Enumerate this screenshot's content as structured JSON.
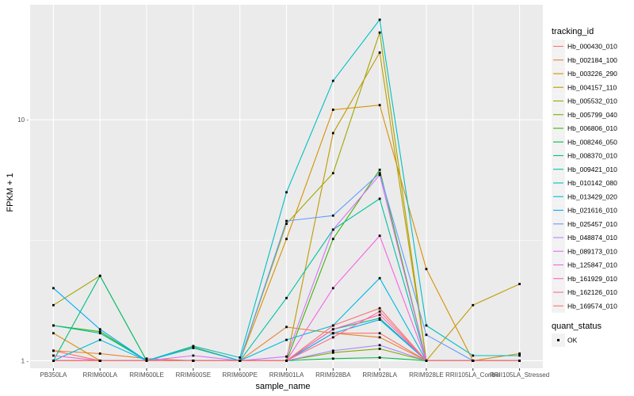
{
  "chart_data": {
    "type": "line",
    "xlabel": "sample_name",
    "ylabel": "FPKM + 1",
    "y_scale": "log10",
    "ylim": [
      0.93,
      30
    ],
    "y_ticks": [
      1,
      10
    ],
    "y_tick_labels": [
      "1 -",
      "10 -"
    ],
    "grid": true,
    "legend_position": "right",
    "legend_title": "tracking_id",
    "legend2_title": "quant_status",
    "legend2_entries": [
      "OK"
    ],
    "categories": [
      "PB350LA",
      "RRIM600LA",
      "RRIM600LE",
      "RRIM600SE",
      "RRIM600PE",
      "RRIM901LA",
      "RRIM928BA",
      "RRIM928LA",
      "RRIM928LE",
      "RRII105LA_Control",
      "RRII105LA_Stressed"
    ],
    "category_labels": [
      "PB350LA",
      "RRIM600LA",
      "RRIM600LE",
      "RRIM600SE",
      "RRIM600PE",
      "RRIM901LA",
      "RRIM928BA",
      "RRIM928LA",
      "RRIM928LE",
      "RRII105LA_Control",
      "RRII105LA_Stressed"
    ],
    "series": [
      {
        "name": "Hb_000430_010",
        "color": "#F8766D",
        "values": [
          1.1,
          1.0,
          1.0,
          1.0,
          1.0,
          1.0,
          1.3,
          1.3,
          1.0,
          1.0,
          1.0
        ]
      },
      {
        "name": "Hb_002184_100",
        "color": "#EA8331",
        "values": [
          1.1,
          1.07,
          1.02,
          1.0,
          1.0,
          1.38,
          1.3,
          1.25,
          1.0,
          1.0,
          1.0
        ]
      },
      {
        "name": "Hb_003226_290",
        "color": "#D89000",
        "values": [
          1.3,
          1.0,
          1.0,
          1.0,
          1.0,
          3.2,
          11.0,
          11.5,
          2.4,
          1.0,
          1.07
        ]
      },
      {
        "name": "Hb_004157_110",
        "color": "#C09B00",
        "values": [
          1.0,
          1.0,
          1.0,
          1.0,
          1.0,
          1.0,
          8.8,
          19.0,
          1.0,
          1.7,
          2.08
        ]
      },
      {
        "name": "Hb_005532_010",
        "color": "#A3A500",
        "values": [
          1.7,
          2.25,
          1.0,
          1.14,
          1.0,
          3.7,
          6.0,
          23.0,
          1.0,
          1.0,
          1.0
        ]
      },
      {
        "name": "Hb_005799_040",
        "color": "#7CAE00",
        "values": [
          1.0,
          1.0,
          1.0,
          1.0,
          1.0,
          1.0,
          1.08,
          1.12,
          1.0,
          1.0,
          1.0
        ]
      },
      {
        "name": "Hb_006806_010",
        "color": "#39B600",
        "values": [
          1.4,
          1.32,
          1.0,
          1.0,
          1.0,
          1.0,
          3.2,
          6.2,
          1.0,
          1.0,
          1.0
        ]
      },
      {
        "name": "Hb_008246_050",
        "color": "#00BB4E",
        "values": [
          1.0,
          1.0,
          1.0,
          1.0,
          1.0,
          1.0,
          1.02,
          1.03,
          1.0,
          1.0,
          1.0
        ]
      },
      {
        "name": "Hb_008370_010",
        "color": "#00BF7D",
        "values": [
          1.0,
          2.25,
          1.0,
          1.0,
          1.0,
          1.0,
          1.35,
          1.5,
          1.0,
          1.0,
          1.0
        ]
      },
      {
        "name": "Hb_009421_010",
        "color": "#00C1A3",
        "values": [
          1.4,
          1.3,
          1.0,
          1.13,
          1.0,
          1.82,
          3.5,
          4.7,
          1.0,
          1.0,
          1.0
        ]
      },
      {
        "name": "Hb_010142_080",
        "color": "#00BFC4",
        "values": [
          1.0,
          1.0,
          1.0,
          1.15,
          1.03,
          5.0,
          14.5,
          26.0,
          1.4,
          1.05,
          1.05
        ]
      },
      {
        "name": "Hb_013429_020",
        "color": "#00B9E3",
        "values": [
          1.0,
          1.22,
          1.0,
          1.13,
          1.0,
          1.22,
          1.4,
          2.2,
          1.0,
          1.0,
          1.0
        ]
      },
      {
        "name": "Hb_021616_010",
        "color": "#00ADFA",
        "values": [
          2.0,
          1.35,
          1.0,
          1.0,
          1.0,
          1.0,
          1.3,
          1.48,
          1.0,
          1.0,
          1.0
        ]
      },
      {
        "name": "Hb_025457_010",
        "color": "#619CFF",
        "values": [
          1.0,
          1.0,
          1.0,
          1.0,
          1.0,
          3.8,
          4.0,
          6.0,
          1.28,
          1.0,
          1.0
        ]
      },
      {
        "name": "Hb_048874_010",
        "color": "#AE87FF",
        "values": [
          1.0,
          1.0,
          1.0,
          1.0,
          1.0,
          1.0,
          1.1,
          1.16,
          1.0,
          1.0,
          1.0
        ]
      },
      {
        "name": "Hb_089173_010",
        "color": "#DB72FB",
        "values": [
          1.0,
          1.0,
          1.0,
          1.05,
          1.0,
          1.04,
          3.5,
          5.9,
          1.0,
          1.0,
          1.0
        ]
      },
      {
        "name": "Hb_125847_010",
        "color": "#F564E3",
        "values": [
          1.0,
          1.0,
          1.0,
          1.0,
          1.0,
          1.0,
          2.0,
          3.3,
          1.0,
          1.0,
          1.0
        ]
      },
      {
        "name": "Hb_161929_010",
        "color": "#FF61C3",
        "values": [
          1.05,
          1.0,
          1.0,
          1.0,
          1.0,
          1.0,
          1.35,
          1.55,
          1.0,
          1.0,
          1.0
        ]
      },
      {
        "name": "Hb_162126_010",
        "color": "#FF6C91",
        "values": [
          1.0,
          1.0,
          1.0,
          1.0,
          1.0,
          1.0,
          1.25,
          1.6,
          1.0,
          1.0,
          1.0
        ]
      },
      {
        "name": "Hb_169574_010",
        "color": "#F8766D",
        "values": [
          1.0,
          1.0,
          1.0,
          1.0,
          1.0,
          1.0,
          1.4,
          1.65,
          1.0,
          1.0,
          1.0
        ]
      }
    ],
    "colors": {
      "panel_background": "#EBEBEB",
      "grid_major": "#FFFFFF",
      "point": "#000000"
    }
  }
}
